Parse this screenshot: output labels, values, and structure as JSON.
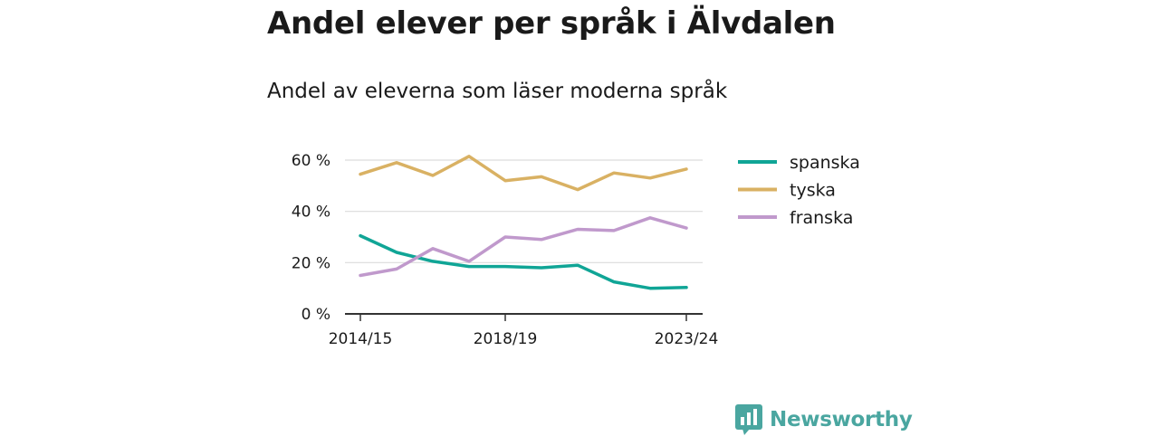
{
  "chart_data": {
    "type": "line",
    "title": "Andel elever per språk i Älvdalen",
    "subtitle": "Andel av eleverna som läser moderna språk",
    "x": [
      "2014/15",
      "2015/16",
      "2016/17",
      "2017/18",
      "2018/19",
      "2019/20",
      "2020/21",
      "2021/22",
      "2022/23",
      "2023/24"
    ],
    "x_tick_labels": [
      "2014/15",
      "2018/19",
      "2023/24"
    ],
    "y_ticks": [
      0,
      20,
      40,
      60
    ],
    "y_tick_labels": [
      "0 %",
      "20 %",
      "40 %",
      "60 %"
    ],
    "ylim": [
      0,
      60
    ],
    "grid": true,
    "legend_position": "right",
    "series": [
      {
        "name": "spanska",
        "color": "#10a596",
        "values": [
          30.5,
          24,
          20.5,
          18.5,
          18.5,
          18,
          19,
          12.5,
          10,
          10.3
        ]
      },
      {
        "name": "tyska",
        "color": "#d9b163",
        "values": [
          54.5,
          59,
          54,
          61.5,
          52,
          53.5,
          48.5,
          55,
          53,
          56.5
        ]
      },
      {
        "name": "franska",
        "color": "#c099cc",
        "values": [
          15,
          17.5,
          25.5,
          20.5,
          30,
          29,
          33,
          32.5,
          37.5,
          33.5
        ]
      }
    ]
  },
  "brand": {
    "name": "Newsworthy"
  }
}
